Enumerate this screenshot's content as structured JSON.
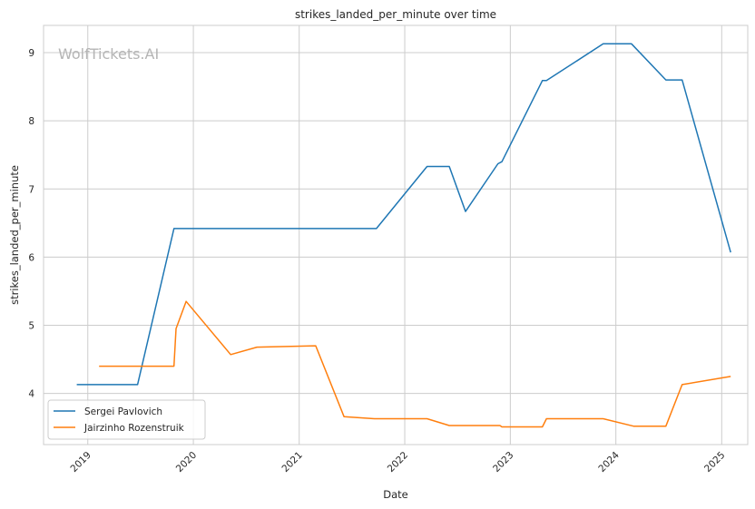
{
  "watermark": "WolfTickets.AI",
  "chart_data": {
    "type": "line",
    "title": "strikes_landed_per_minute over time",
    "xlabel": "Date",
    "ylabel": "strikes_landed_per_minute",
    "xlim": [
      "2018-08-01",
      "2025-04-01"
    ],
    "ylim": [
      3.25,
      9.4
    ],
    "x_ticks": [
      "2019",
      "2020",
      "2021",
      "2022",
      "2023",
      "2024",
      "2025"
    ],
    "y_ticks": [
      4,
      5,
      6,
      7,
      8,
      9
    ],
    "grid": true,
    "legend_position": "lower-left",
    "series": [
      {
        "name": "Sergei Pavlovich",
        "color": "#1f77b4",
        "points": [
          [
            "2018-11-24",
            4.13
          ],
          [
            "2019-06-22",
            4.13
          ],
          [
            "2019-10-26",
            6.42
          ],
          [
            "2021-09-25",
            6.42
          ],
          [
            "2022-03-19",
            7.33
          ],
          [
            "2022-06-04",
            7.33
          ],
          [
            "2022-07-30",
            6.67
          ],
          [
            "2022-11-19",
            7.37
          ],
          [
            "2022-12-03",
            7.4
          ],
          [
            "2023-04-22",
            8.59
          ],
          [
            "2023-05-06",
            8.59
          ],
          [
            "2023-11-18",
            9.13
          ],
          [
            "2024-02-24",
            9.13
          ],
          [
            "2024-06-22",
            8.6
          ],
          [
            "2024-08-17",
            8.6
          ],
          [
            "2025-02-01",
            6.07
          ]
        ]
      },
      {
        "name": "Jairzinho Rozenstruik",
        "color": "#ff7f0e",
        "points": [
          [
            "2019-02-09",
            4.4
          ],
          [
            "2019-10-26",
            4.4
          ],
          [
            "2019-11-02",
            4.95
          ],
          [
            "2019-12-07",
            5.35
          ],
          [
            "2020-05-09",
            4.57
          ],
          [
            "2020-08-08",
            4.68
          ],
          [
            "2021-02-27",
            4.7
          ],
          [
            "2021-06-05",
            3.66
          ],
          [
            "2021-09-18",
            3.63
          ],
          [
            "2022-03-19",
            3.63
          ],
          [
            "2022-06-04",
            3.53
          ],
          [
            "2022-11-26",
            3.53
          ],
          [
            "2022-12-03",
            3.51
          ],
          [
            "2023-04-22",
            3.51
          ],
          [
            "2023-05-06",
            3.63
          ],
          [
            "2023-11-18",
            3.63
          ],
          [
            "2024-03-02",
            3.52
          ],
          [
            "2024-06-22",
            3.52
          ],
          [
            "2024-08-17",
            4.13
          ],
          [
            "2025-02-01",
            4.25
          ]
        ]
      }
    ]
  }
}
